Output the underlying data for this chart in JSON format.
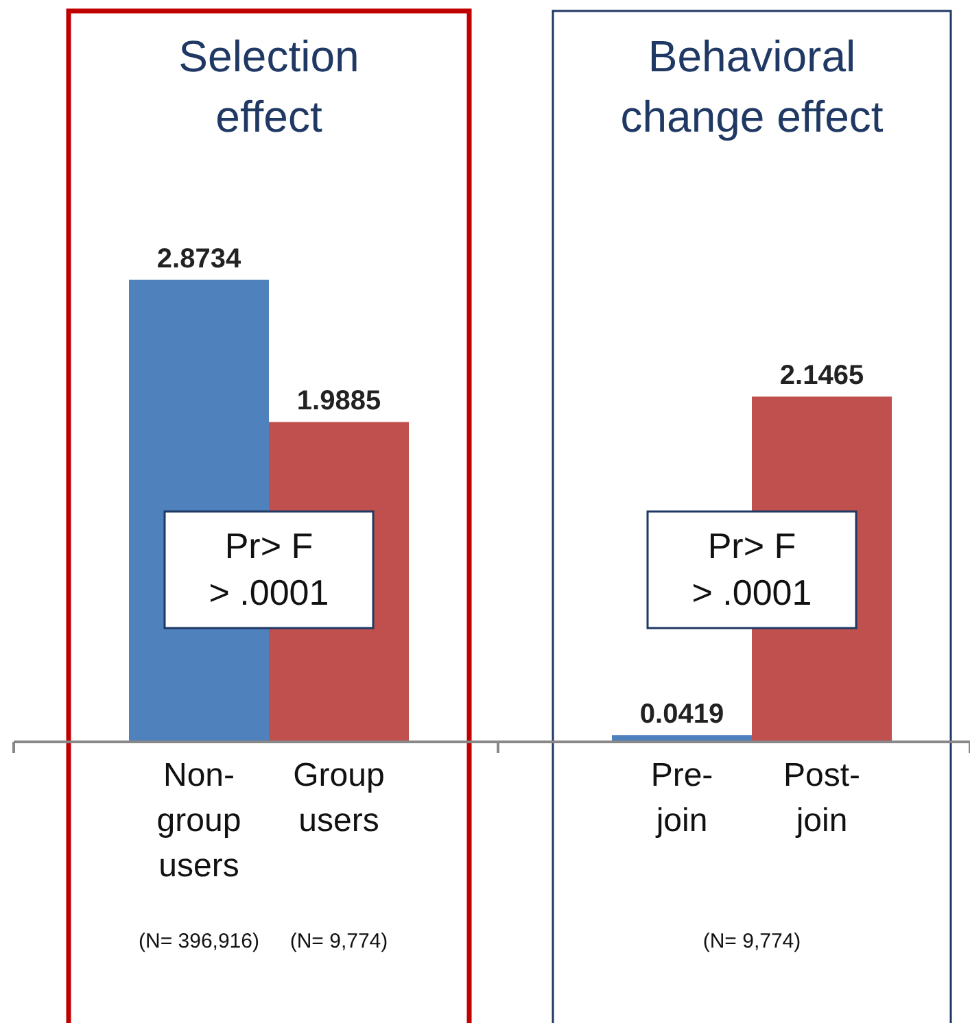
{
  "chart_data": [
    {
      "type": "bar",
      "title": "Selection effect",
      "categories": [
        "Non-group users",
        "Group users"
      ],
      "values": [
        2.8734,
        1.9885
      ],
      "colors": [
        "#4f81bd",
        "#c0504d"
      ],
      "tick_labels": "x",
      "data_labels": true,
      "annotations": [
        "Pr> F\n> .0001",
        "(N= 396,916)",
        "(N= 9,774)"
      ]
    },
    {
      "type": "bar",
      "title": "Behavioral change effect",
      "categories": [
        "Pre-join",
        "Post-join"
      ],
      "values": [
        0.0419,
        2.1465
      ],
      "colors": [
        "#4f81bd",
        "#c0504d"
      ],
      "tick_labels": "x",
      "data_labels": true,
      "annotations": [
        "Pr> F\n> .0001",
        "(N= 9,774)"
      ]
    }
  ]
}
